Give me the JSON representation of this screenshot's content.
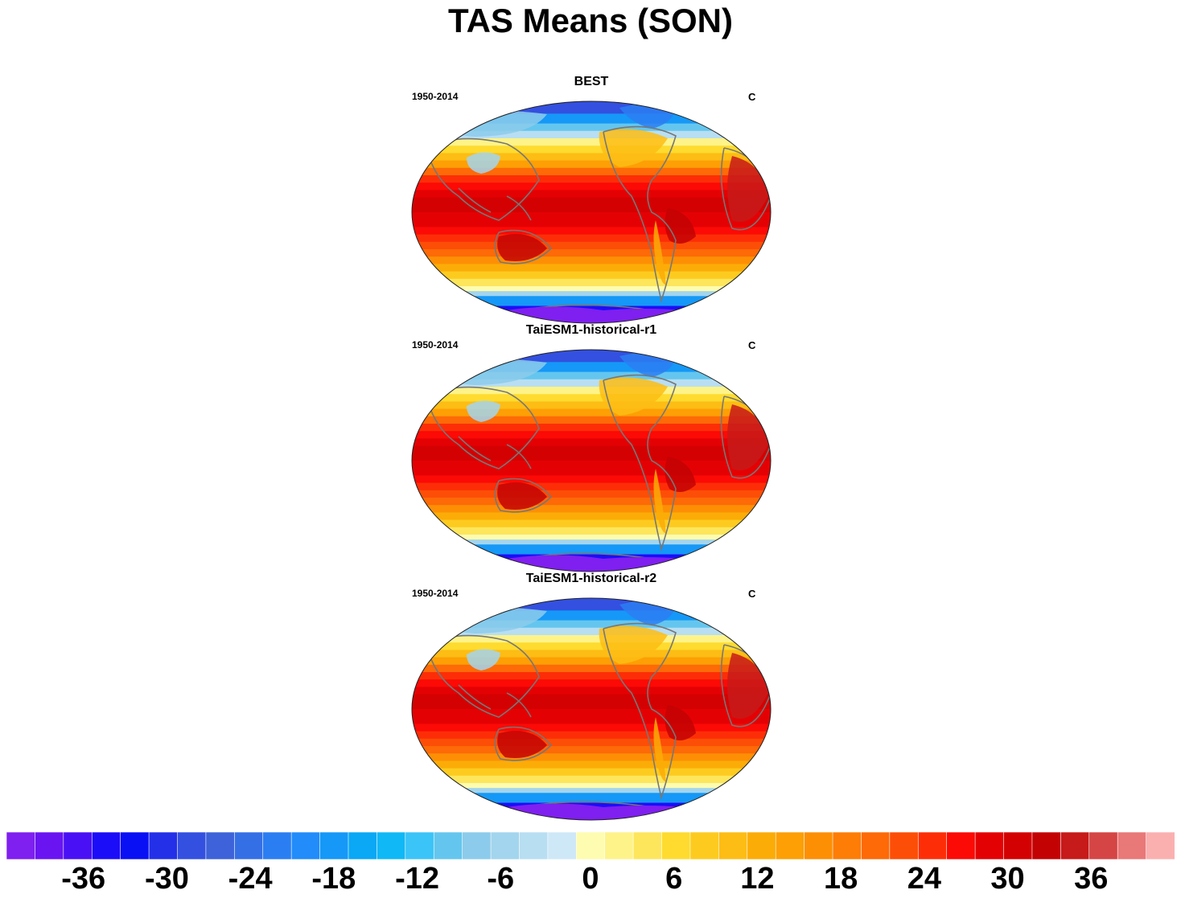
{
  "title": "TAS Means (SON)",
  "panels": [
    {
      "title": "BEST",
      "period": "1950-2014",
      "units": "C"
    },
    {
      "title": "TaiESM1-historical-r1",
      "period": "1950-2014",
      "units": "C"
    },
    {
      "title": "TaiESM1-historical-r2",
      "period": "1950-2014",
      "units": "C"
    }
  ],
  "colorbar": {
    "min": -42,
    "max": 42,
    "step": 2,
    "tick_labels": [
      "-36",
      "-30",
      "-24",
      "-18",
      "-12",
      "-6",
      "0",
      "6",
      "12",
      "18",
      "24",
      "30",
      "36"
    ],
    "colors": [
      "#7f1ff0",
      "#6a14f2",
      "#4a10f5",
      "#1c0df8",
      "#0a10f4",
      "#2430e8",
      "#3350e0",
      "#3d62d9",
      "#356fe6",
      "#2b7ef2",
      "#218cfa",
      "#1598f7",
      "#0aa8f5",
      "#10b8f6",
      "#3bc4f8",
      "#64c6ee",
      "#8ccbeb",
      "#a3d5ee",
      "#b8def2",
      "#cfe8f7",
      "#fefcb0",
      "#fef389",
      "#fde65c",
      "#fedb2e",
      "#fdcb1f",
      "#fdbd14",
      "#fcac07",
      "#fd9f05",
      "#fd8f05",
      "#fd7d06",
      "#fd6a07",
      "#fd4e07",
      "#fd2e07",
      "#fc0a06",
      "#e40104",
      "#d40102",
      "#c30204",
      "#c71a1a",
      "#d54545",
      "#e97878",
      "#fbb0b0"
    ]
  },
  "map": {
    "projection": "Robinson",
    "coastline_color": "#777777",
    "antarctica_color": "#7f1ff0"
  }
}
